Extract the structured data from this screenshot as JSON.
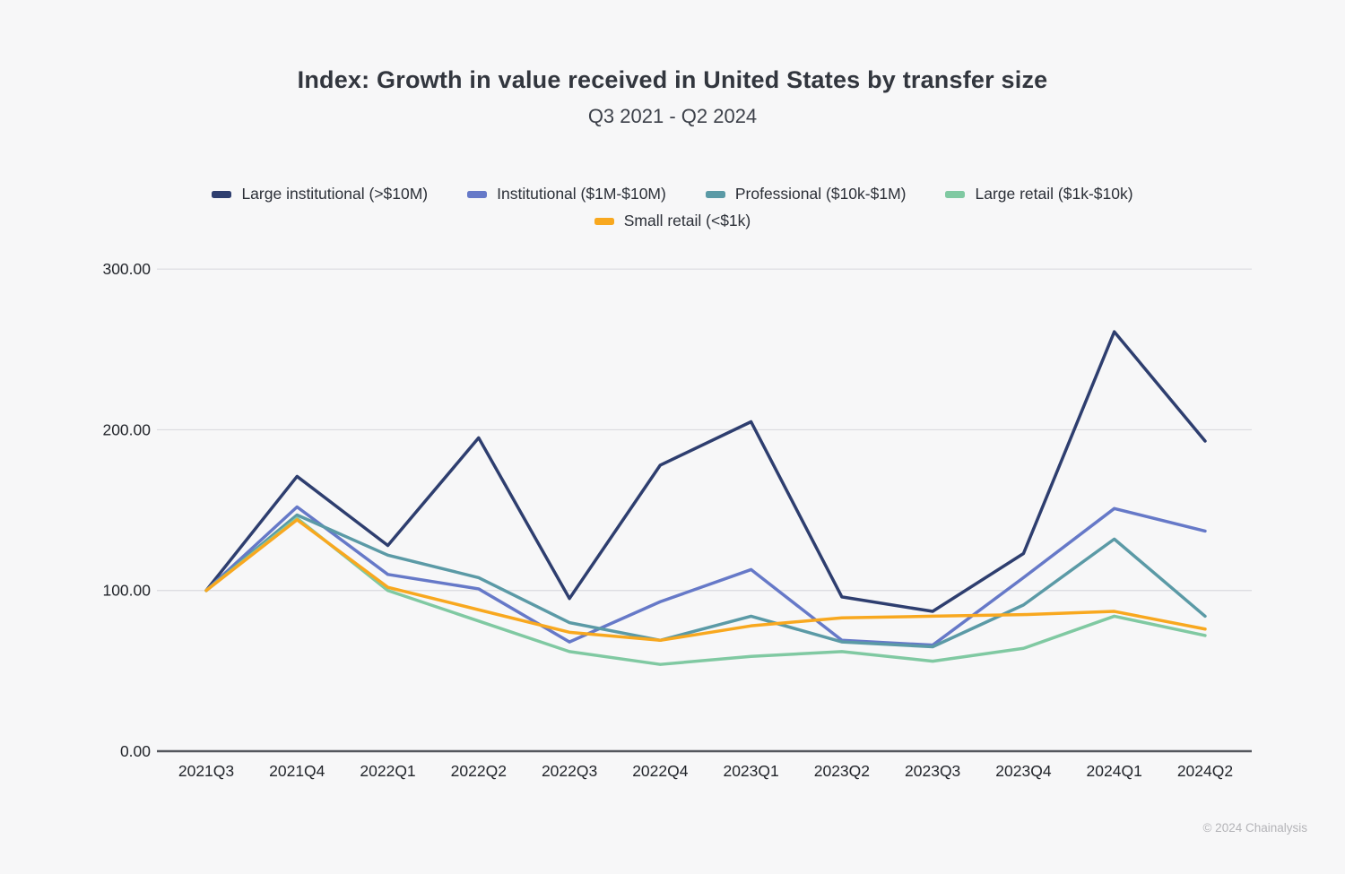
{
  "footer": "© 2024 Chainalysis",
  "chart_data": {
    "type": "line",
    "title": "Index: Growth in value received in United States by transfer size",
    "subtitle": "Q3 2021 - Q2 2024",
    "categories": [
      "2021Q3",
      "2021Q4",
      "2022Q1",
      "2022Q2",
      "2022Q3",
      "2022Q4",
      "2023Q1",
      "2023Q2",
      "2023Q3",
      "2023Q4",
      "2024Q1",
      "2024Q2"
    ],
    "series": [
      {
        "name": "Large institutional (>$10M)",
        "color": "#2e3e6f",
        "values": [
          100,
          171,
          128,
          195,
          95,
          178,
          205,
          96,
          87,
          123,
          261,
          193
        ]
      },
      {
        "name": "Institutional ($1M-$10M)",
        "color": "#6679c8",
        "values": [
          100,
          152,
          110,
          101,
          68,
          93,
          113,
          69,
          66,
          108,
          151,
          137
        ]
      },
      {
        "name": "Professional ($10k-$1M)",
        "color": "#5b9aa6",
        "values": [
          100,
          147,
          122,
          108,
          80,
          69,
          84,
          68,
          65,
          91,
          132,
          84
        ]
      },
      {
        "name": "Large retail ($1k-$10k)",
        "color": "#80c9a2",
        "values": [
          100,
          145,
          100,
          81,
          62,
          54,
          59,
          62,
          56,
          64,
          84,
          72
        ]
      },
      {
        "name": "Small retail (<$1k)",
        "color": "#f8a81f",
        "values": [
          100,
          144,
          102,
          88,
          74,
          69,
          78,
          83,
          84,
          85,
          87,
          76
        ]
      }
    ],
    "ylim": [
      0,
      300
    ],
    "yticks": [
      {
        "value": 0,
        "label": "0.00"
      },
      {
        "value": 100,
        "label": "100.00"
      },
      {
        "value": 200,
        "label": "200.00"
      },
      {
        "value": 300,
        "label": "300.00"
      }
    ],
    "grid": "horizontal",
    "legend_position": "top",
    "legend_rows": [
      4,
      1
    ]
  }
}
